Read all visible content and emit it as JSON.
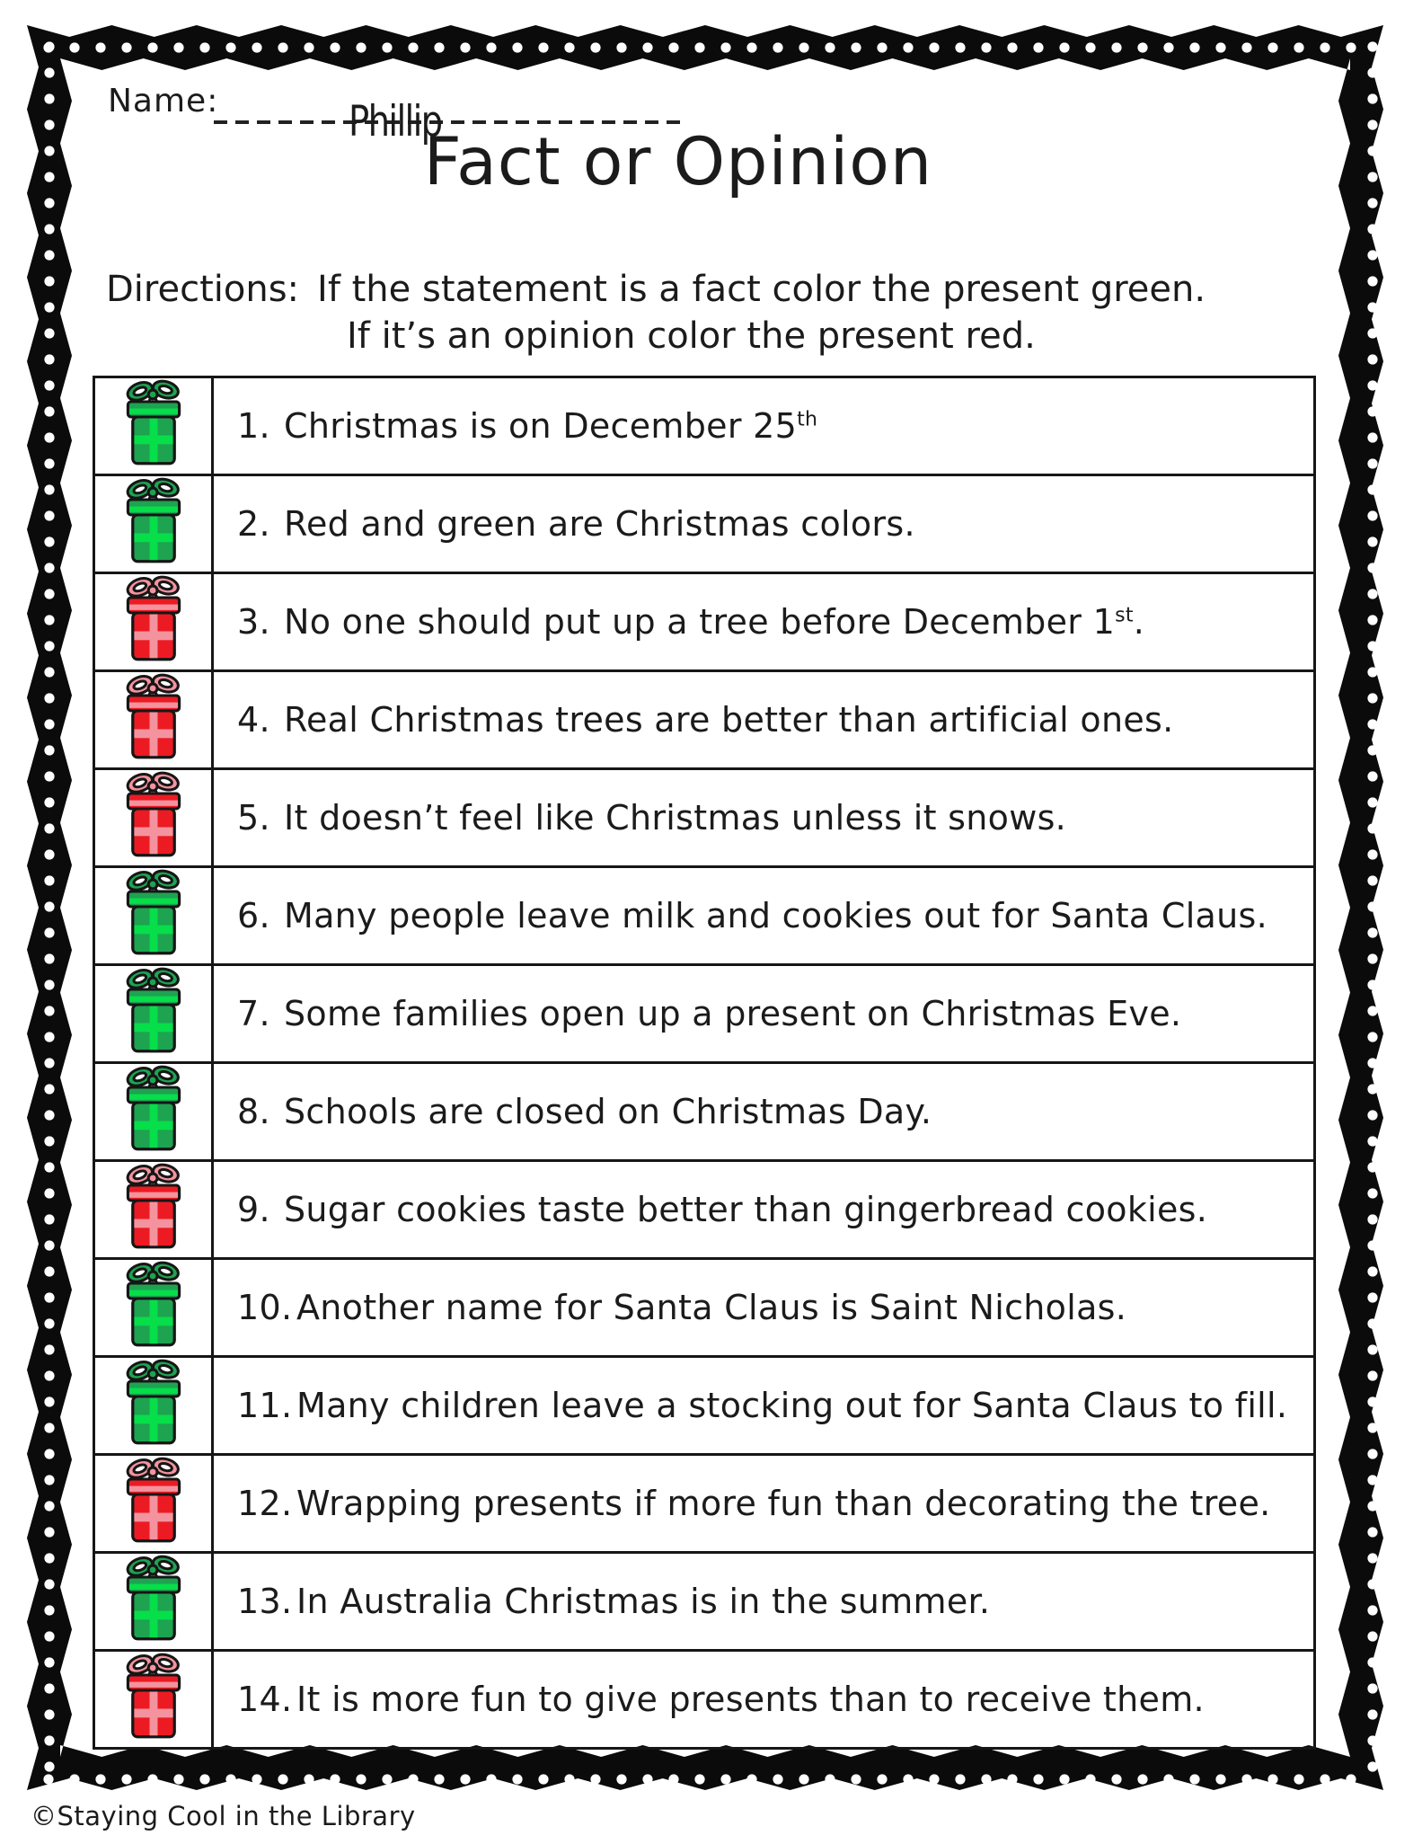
{
  "header": {
    "name_label": "Name:",
    "student_name": "Phillip",
    "title": "Fact or Opinion"
  },
  "directions": {
    "label": "Directions:",
    "line1": "If the statement is a fact color the present green.",
    "line2": "If it’s an opinion color the present red."
  },
  "rows": [
    {
      "number": "1.",
      "text": "Christmas is on December 25",
      "sup": "th",
      "tail": "",
      "present": "green"
    },
    {
      "number": "2.",
      "text": "Red and green are Christmas colors.",
      "sup": "",
      "tail": "",
      "present": "green"
    },
    {
      "number": "3.",
      "text": "No one should put up a tree before December 1",
      "sup": "st",
      "tail": ".",
      "present": "red"
    },
    {
      "number": "4.",
      "text": "Real Christmas trees are better than artificial ones.",
      "sup": "",
      "tail": "",
      "present": "red"
    },
    {
      "number": "5.",
      "text": "It doesn’t feel like Christmas unless it snows.",
      "sup": "",
      "tail": "",
      "present": "red"
    },
    {
      "number": "6.",
      "text": "Many people leave milk and cookies out for Santa Claus.",
      "sup": "",
      "tail": "",
      "present": "green"
    },
    {
      "number": "7.",
      "text": "Some families open up a present on Christmas Eve.",
      "sup": "",
      "tail": "",
      "present": "green"
    },
    {
      "number": "8.",
      "text": "Schools are closed on Christmas Day.",
      "sup": "",
      "tail": "",
      "present": "green"
    },
    {
      "number": "9.",
      "text": "Sugar cookies taste better than gingerbread cookies.",
      "sup": "",
      "tail": "",
      "present": "red"
    },
    {
      "number": "10.",
      "text": "Another name for Santa Claus is Saint Nicholas.",
      "sup": "",
      "tail": "",
      "present": "green"
    },
    {
      "number": "11.",
      "text": "Many children leave a stocking out for Santa Claus to fill.",
      "sup": "",
      "tail": "",
      "present": "green"
    },
    {
      "number": "12.",
      "text": "Wrapping presents if more fun than decorating the tree.",
      "sup": "",
      "tail": "",
      "present": "red"
    },
    {
      "number": "13.",
      "text": "In Australia Christmas is in the summer.",
      "sup": "",
      "tail": "",
      "present": "green"
    },
    {
      "number": "14.",
      "text": "It is more fun to give presents than to receive them.",
      "sup": "",
      "tail": "",
      "present": "red"
    }
  ],
  "footer": {
    "credit": "©Staying Cool in the Library"
  },
  "colors": {
    "border_band": "#0b0b0b",
    "green_body": "#1ea351",
    "green_ribbon": "#06de4a",
    "green_bow": "#1ea351",
    "red_body": "#ec1b23",
    "red_ribbon": "#f4939e",
    "red_bow": "#f4939e",
    "outline": "#161616"
  }
}
